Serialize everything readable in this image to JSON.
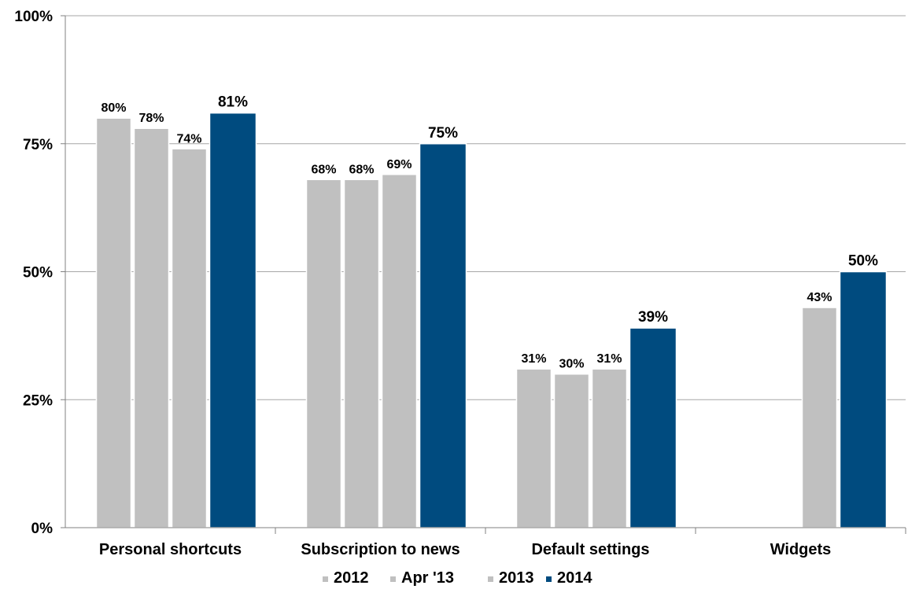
{
  "chart_data": {
    "type": "bar",
    "categories": [
      "Personal shortcuts",
      "Subscription to news",
      "Default settings",
      "Widgets"
    ],
    "series": [
      {
        "name": "2012",
        "values": [
          80,
          68,
          31,
          null
        ],
        "labels": [
          "80%",
          "68%",
          "31%",
          ""
        ]
      },
      {
        "name": "Apr '13",
        "values": [
          78,
          68,
          30,
          null
        ],
        "labels": [
          "78%",
          "68%",
          "30%",
          ""
        ]
      },
      {
        "name": "2013",
        "values": [
          74,
          69,
          31,
          43
        ],
        "labels": [
          "74%",
          "69%",
          "31%",
          "43%"
        ]
      },
      {
        "name": "2014",
        "values": [
          81,
          75,
          39,
          50
        ],
        "labels": [
          "81%",
          "75%",
          "39%",
          "50%"
        ]
      }
    ],
    "ylim": [
      0,
      100
    ],
    "yticks": [
      0,
      25,
      50,
      75,
      100
    ],
    "ytick_labels": [
      "0%",
      "25%",
      "50%",
      "75%",
      "100%"
    ],
    "xlabel": "",
    "ylabel": "",
    "grid": true,
    "legend": "bottom",
    "colors": {
      "2012": "#c0c0c0",
      "Apr '13": "#c0c0c0",
      "2013": "#c0c0c0",
      "2014": "#004b7f"
    }
  }
}
